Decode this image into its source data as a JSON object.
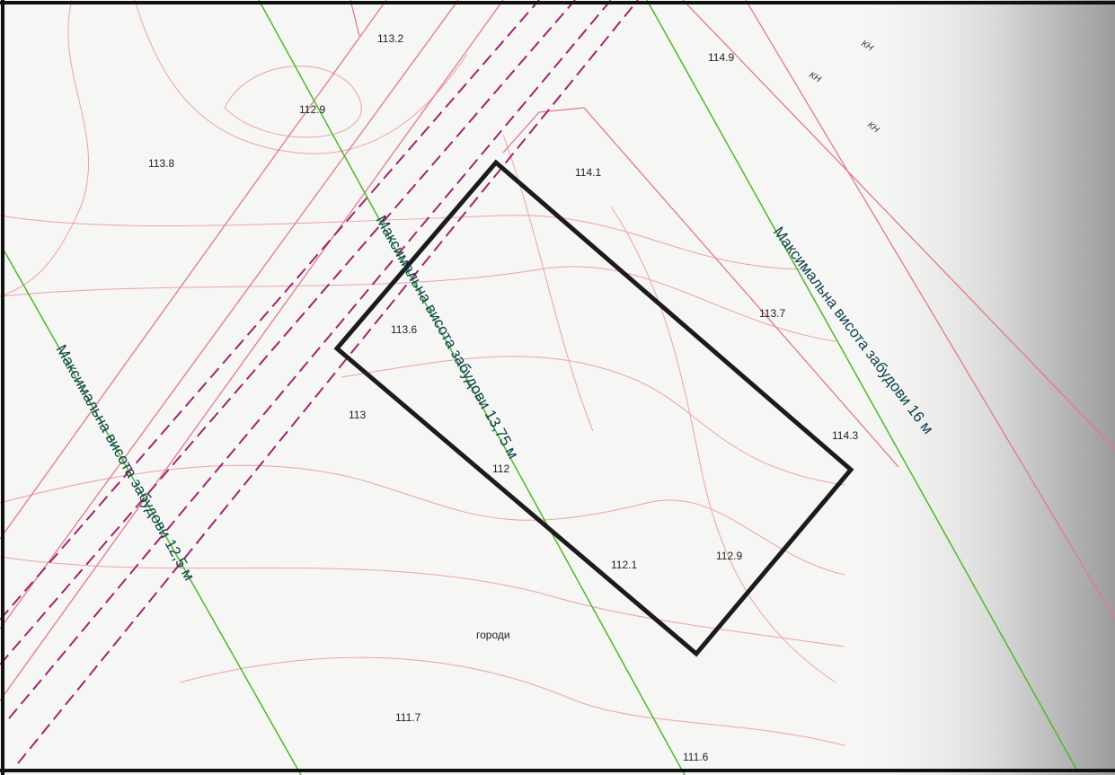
{
  "elevations": [
    "113.2",
    "114.9",
    "112.9",
    "113.8",
    "114.1",
    "113.7",
    "113.6",
    "113",
    "114.3",
    "112",
    "112.1",
    "112.9",
    "111.7",
    "111.6"
  ],
  "height_labels": [
    "Максимальна висота забудови 13,75 м",
    "Максимальна висота забудови 12,5 м",
    "Максимальна висота забудови 16 м"
  ],
  "area_label": "городи",
  "cadastre_marks": [
    "КН",
    "КН",
    "КН"
  ]
}
